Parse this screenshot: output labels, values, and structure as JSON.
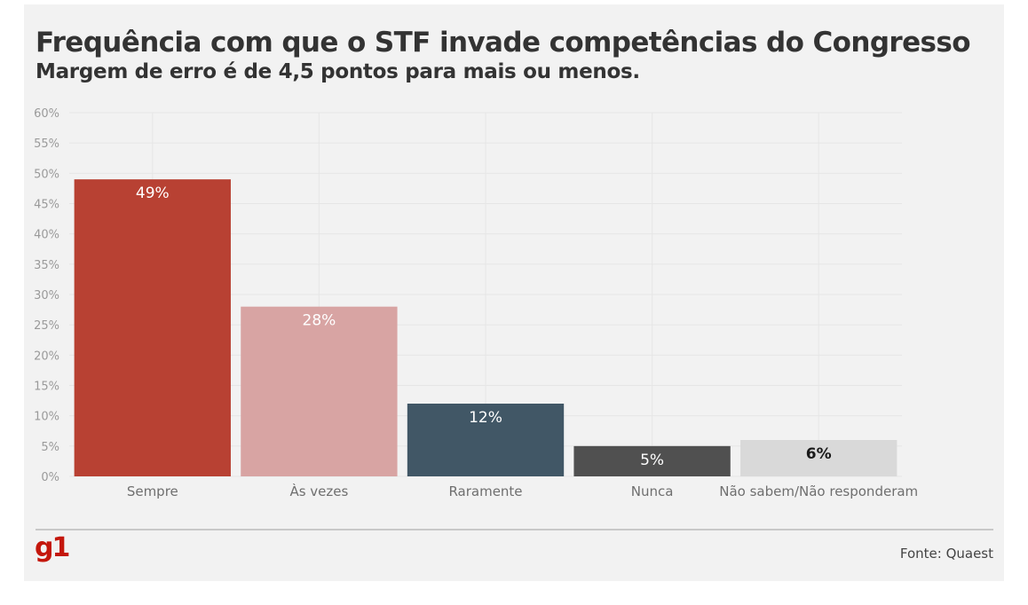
{
  "chart_data": {
    "type": "bar",
    "title": "Frequência com que o STF invade competências do Congresso",
    "subtitle": "Margem de erro é de 4,5 pontos para mais ou menos.",
    "categories": [
      "Sempre",
      "Às vezes",
      "Raramente",
      "Nunca",
      "Não sabem/Não responderam"
    ],
    "values": [
      49,
      28,
      12,
      5,
      6
    ],
    "value_labels": [
      "49%",
      "28%",
      "12%",
      "5%",
      "6%"
    ],
    "colors": [
      "#b84133",
      "#d8a4a3",
      "#415766",
      "#505050",
      "#d9d9d9"
    ],
    "label_colors": [
      "#ffffff",
      "#ffffff",
      "#ffffff",
      "#ffffff",
      "#1a1a1a"
    ],
    "ylim": [
      0,
      60
    ],
    "yticks": [
      0,
      5,
      10,
      15,
      20,
      25,
      30,
      35,
      40,
      45,
      50,
      55,
      60
    ],
    "ytick_labels": [
      "0%",
      "5%",
      "10%",
      "15%",
      "20%",
      "25%",
      "30%",
      "35%",
      "40%",
      "45%",
      "50%",
      "55%",
      "60%"
    ],
    "xlabel": "",
    "ylabel": "",
    "grid": true,
    "legend": "none"
  },
  "footer": {
    "logo_text": "g1",
    "source": "Fonte: Quaest"
  }
}
